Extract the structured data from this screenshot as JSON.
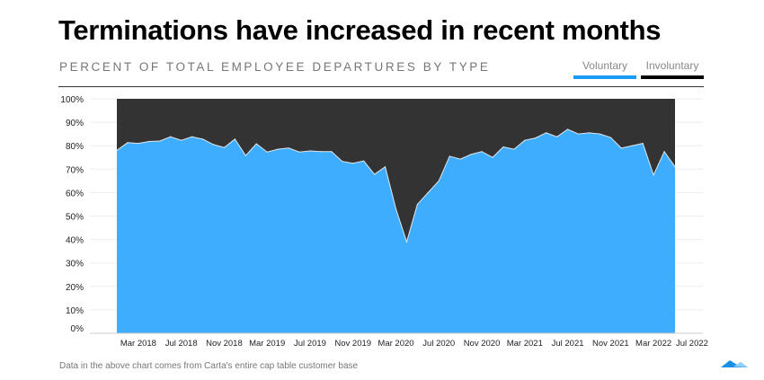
{
  "header": {
    "title": "Terminations have increased in recent months",
    "subtitle": "PERCENT OF TOTAL EMPLOYEE DEPARTURES BY TYPE"
  },
  "legend": [
    {
      "label": "Voluntary",
      "color": "#1a9bf5"
    },
    {
      "label": "Involuntary",
      "color": "#000000"
    }
  ],
  "footer": {
    "note": "Data in the above chart comes from Carta's entire cap table customer base"
  },
  "chart_data": {
    "type": "area",
    "stacked": true,
    "normalized": true,
    "title": "Terminations have increased in recent months",
    "subtitle": "PERCENT OF TOTAL EMPLOYEE DEPARTURES BY TYPE",
    "x_start": "Jan 2018",
    "x_frequency": "monthly",
    "x_tick_labels": [
      "Mar 2018",
      "Jul 2018",
      "Nov 2018",
      "Mar 2019",
      "Jul 2019",
      "Nov 2019",
      "Mar 2020",
      "Jul 2020",
      "Nov 2020",
      "Mar 2021",
      "Jul 2021",
      "Nov 2021",
      "Mar 2022",
      "Jul 2022"
    ],
    "y_tick_labels": [
      "0%",
      "10%",
      "20%",
      "30%",
      "40%",
      "50%",
      "60%",
      "70%",
      "80%",
      "90%",
      "100%"
    ],
    "ylim": [
      0,
      100
    ],
    "grid": true,
    "legend_position": "top-right",
    "series": [
      {
        "name": "Voluntary",
        "color": "#3fadfd",
        "values": [
          78,
          81.3,
          81,
          81.8,
          82,
          83.8,
          82.3,
          83.8,
          82.8,
          80.5,
          79.2,
          82.8,
          75.8,
          80.8,
          77.3,
          78.5,
          79,
          77.3,
          77.8,
          77.5,
          77.5,
          73.3,
          72.5,
          73.5,
          67.8,
          71,
          53,
          39,
          55,
          60,
          65,
          75.5,
          74.3,
          76.3,
          77.5,
          75,
          79.5,
          78.5,
          82.3,
          83.3,
          85.5,
          83.8,
          87,
          85,
          85.5,
          85,
          83.5,
          79,
          80,
          81,
          67.5,
          77.5,
          71
        ]
      },
      {
        "name": "Involuntary",
        "color": "#333333",
        "values": [
          22,
          18.7,
          19,
          18.2,
          18,
          16.2,
          17.7,
          16.2,
          17.2,
          19.5,
          20.8,
          17.2,
          24.2,
          19.2,
          22.7,
          21.5,
          21,
          22.7,
          22.2,
          22.5,
          22.5,
          26.7,
          27.5,
          26.5,
          32.2,
          29,
          47,
          61,
          45,
          40,
          35,
          24.5,
          25.7,
          23.7,
          22.5,
          25,
          20.5,
          21.5,
          17.7,
          16.7,
          14.5,
          16.2,
          13,
          15,
          14.5,
          15,
          16.5,
          21,
          20,
          19,
          32.5,
          22.5,
          29
        ]
      }
    ]
  }
}
